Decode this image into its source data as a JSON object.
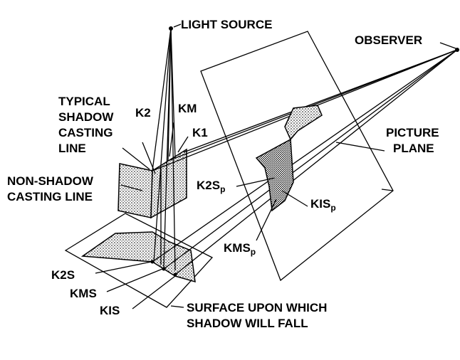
{
  "labels": {
    "light_source": "LIGHT SOURCE",
    "observer": "OBSERVER",
    "typical_shadow_casting_line": [
      "TYPICAL",
      "SHADOW",
      "CASTING",
      "LINE"
    ],
    "non_shadow_casting_line": [
      "NON-SHADOW",
      "CASTING LINE"
    ],
    "k2": "K2",
    "km": "KM",
    "k1": "K1",
    "picture_plane": [
      "PICTURE",
      "PLANE"
    ],
    "k2sp": "K2S",
    "k1sp": "KIS",
    "kmsp": "KMS",
    "p_subscript": "p",
    "k2s": "K2S",
    "kms": "KMS",
    "kis": "KIS",
    "surface": [
      "SURFACE UPON WHICH",
      "SHADOW WILL FALL"
    ]
  }
}
